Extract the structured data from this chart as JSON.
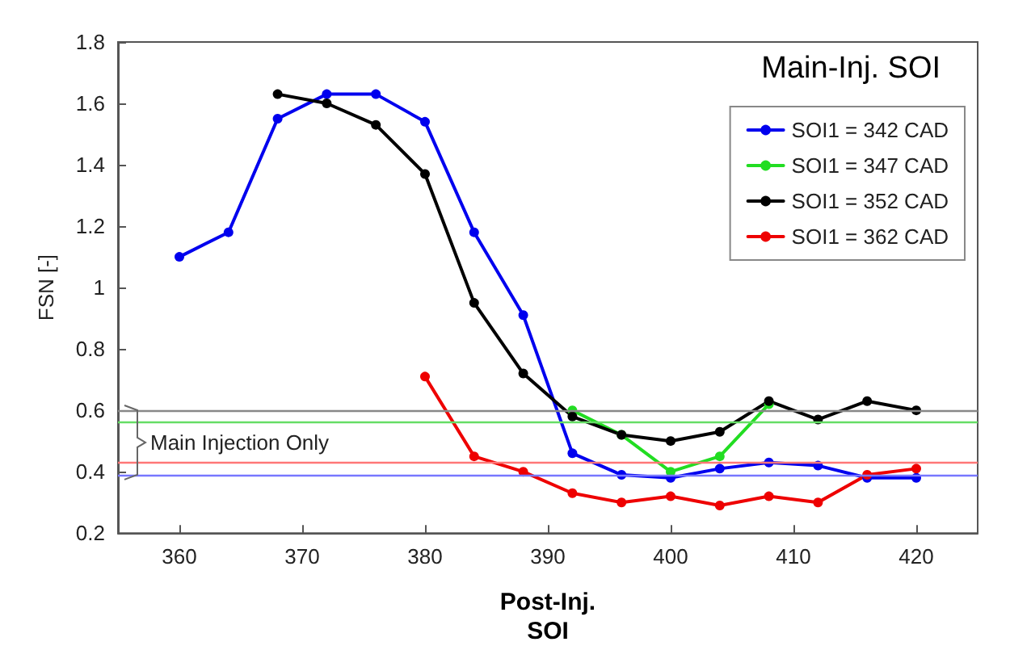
{
  "chart_data": {
    "type": "line",
    "xlabel": "Post-Inj.\nSOI",
    "ylabel": "FSN [-]",
    "legend_title": "Main-Inj. SOI",
    "legend": "top right",
    "marker": "circle",
    "line_style": "solid",
    "grid": false,
    "xlim": [
      355,
      425
    ],
    "xticks": [
      360,
      370,
      380,
      390,
      400,
      410,
      420
    ],
    "ylim": [
      0.2,
      1.8
    ],
    "yticks": [
      0.2,
      0.4,
      0.6,
      0.8,
      1,
      1.2,
      1.4,
      1.6,
      1.8
    ],
    "series": [
      {
        "name": "SOI1 = 342 CAD",
        "color": "#0000ee",
        "x": [
          360,
          364,
          368,
          372,
          376,
          380,
          384,
          388,
          392,
          396,
          400,
          404,
          408,
          412,
          416,
          420
        ],
        "values": [
          1.1,
          1.18,
          1.55,
          1.63,
          1.63,
          1.54,
          1.18,
          0.91,
          0.46,
          0.39,
          0.38,
          0.41,
          0.43,
          0.42,
          0.38,
          0.38
        ]
      },
      {
        "name": "SOI1 = 347 CAD",
        "color": "#22dd22",
        "x": [
          392,
          396,
          400,
          404,
          408
        ],
        "values": [
          0.6,
          0.52,
          0.4,
          0.45,
          0.62
        ]
      },
      {
        "name": "SOI1 = 352 CAD",
        "color": "#000000",
        "x": [
          368,
          372,
          376,
          380,
          384,
          388,
          392,
          396,
          400,
          404,
          408,
          412,
          416,
          420
        ],
        "values": [
          1.63,
          1.6,
          1.53,
          1.37,
          0.95,
          0.72,
          0.58,
          0.52,
          0.5,
          0.53,
          0.63,
          0.57,
          0.63,
          0.6
        ]
      },
      {
        "name": "SOI1 = 362 CAD",
        "color": "#ee0000",
        "x": [
          380,
          384,
          388,
          392,
          396,
          400,
          404,
          408,
          412,
          416,
          420
        ],
        "values": [
          0.71,
          0.45,
          0.4,
          0.33,
          0.3,
          0.32,
          0.29,
          0.32,
          0.3,
          0.39,
          0.41
        ]
      }
    ],
    "ref_lines": [
      {
        "axis": "y",
        "value": 0.6,
        "color": "#888888"
      },
      {
        "axis": "y",
        "value": 0.56,
        "color": "#66dd66"
      },
      {
        "axis": "y",
        "value": 0.43,
        "color": "#ff7777"
      },
      {
        "axis": "y",
        "value": 0.39,
        "color": "#7777ff"
      }
    ],
    "annotations": [
      "Main Injection Only"
    ]
  }
}
